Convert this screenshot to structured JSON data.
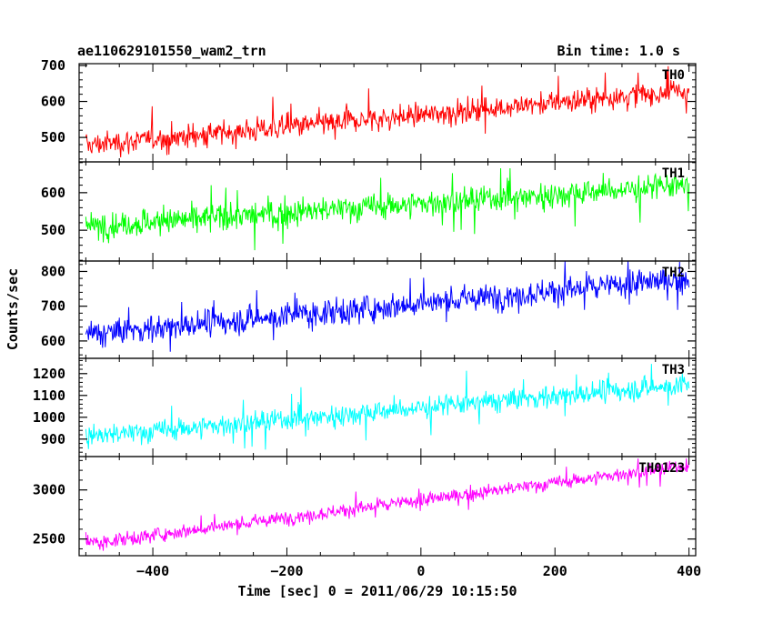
{
  "header": {
    "obs_id": "ae110629101550_wam2_trn",
    "bin_time": "Bin time: 1.0 s"
  },
  "chart_data": {
    "type": "line",
    "xlabel": "Time [sec] 0 = 2011/06/29 10:15:50",
    "ylabel": "Counts/sec",
    "xlim": [
      -510,
      410
    ],
    "x_ticks": [
      -400,
      -200,
      0,
      200,
      400
    ],
    "x_tick_labels": [
      "−400",
      "−200",
      "0",
      "200",
      "400"
    ],
    "x_range": [
      -500,
      400
    ],
    "bin_time": 1.0,
    "panels": [
      {
        "name": "TH0",
        "color": "#ff0000",
        "ylim": [
          432,
          705
        ],
        "y_ticks": [
          500,
          600,
          700
        ],
        "y_tick_labels": [
          "500",
          "600",
          "700"
        ],
        "trend_start": 478,
        "trend_end": 630,
        "noise": 26,
        "spike_max": 705,
        "spike_min": 432
      },
      {
        "name": "TH1",
        "color": "#00ff00",
        "ylim": [
          418,
          682
        ],
        "y_ticks": [
          500,
          600
        ],
        "y_tick_labels": [
          "500",
          "600"
        ],
        "trend_start": 510,
        "trend_end": 620,
        "noise": 28,
        "spike_max": 665,
        "spike_min": 430
      },
      {
        "name": "TH2",
        "color": "#0000ff",
        "ylim": [
          550,
          830
        ],
        "y_ticks": [
          600,
          700,
          800
        ],
        "y_tick_labels": [
          "600",
          "700",
          "800"
        ],
        "trend_start": 618,
        "trend_end": 780,
        "noise": 30,
        "spike_max": 830,
        "spike_min": 560
      },
      {
        "name": "TH3",
        "color": "#00ffff",
        "ylim": [
          820,
          1270
        ],
        "y_ticks": [
          900,
          1000,
          1100,
          1200
        ],
        "y_tick_labels": [
          "900",
          "1000",
          "1100",
          "1200"
        ],
        "trend_start": 910,
        "trend_end": 1150,
        "noise": 40,
        "spike_max": 1250,
        "spike_min": 850
      },
      {
        "name": "TH0123",
        "color": "#ff00ff",
        "ylim": [
          2330,
          3340
        ],
        "y_ticks": [
          2500,
          3000
        ],
        "y_tick_labels": [
          "2500",
          "3000"
        ],
        "trend_start": 2450,
        "trend_end": 3250,
        "noise": 55,
        "spike_max": 3320,
        "spike_min": 2380
      }
    ]
  }
}
